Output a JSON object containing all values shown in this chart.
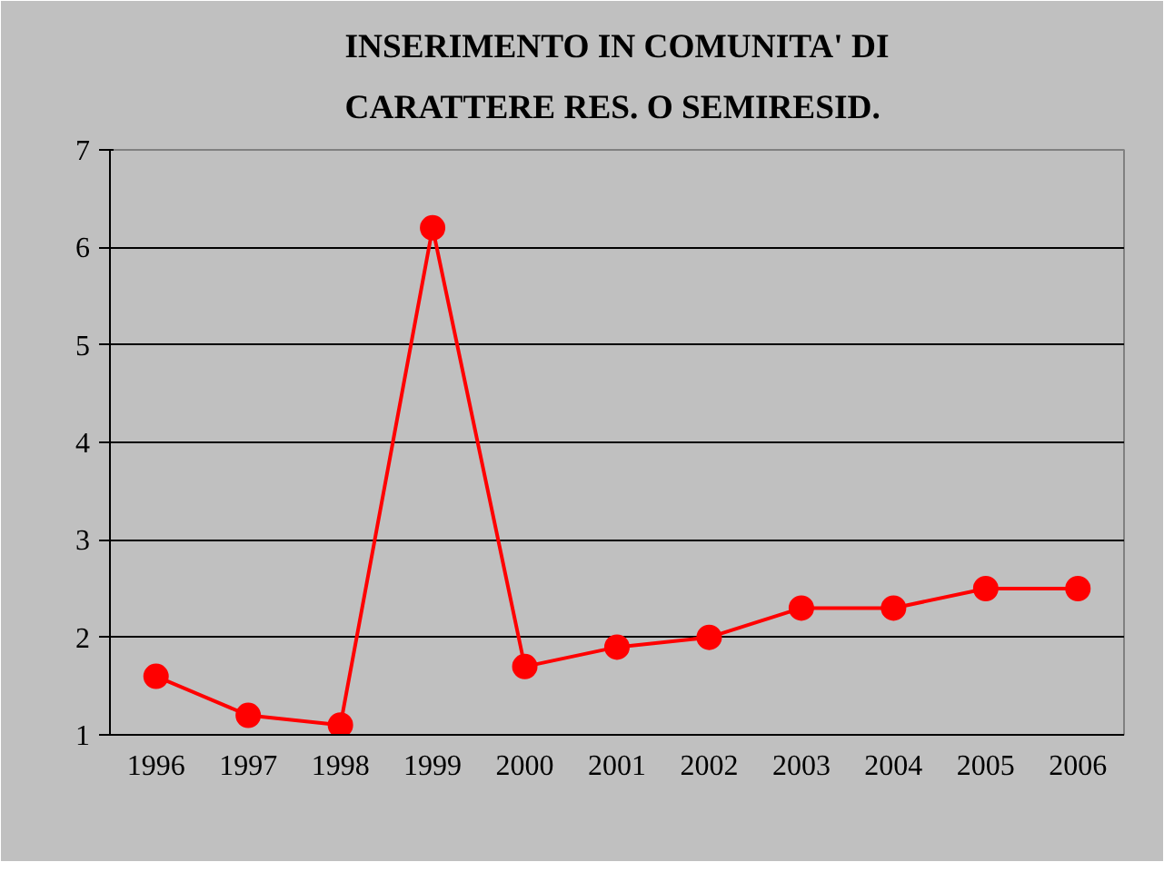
{
  "chart_data": {
    "type": "line",
    "title": "INSERIMENTO IN COMUNITA' DI\nCARATTERE RES. O SEMIRESID.",
    "categories": [
      "1996",
      "1997",
      "1998",
      "1999",
      "2000",
      "2001",
      "2002",
      "2003",
      "2004",
      "2005",
      "2006"
    ],
    "series": [
      {
        "color": "#ff0000",
        "values": [
          1.6,
          1.2,
          1.1,
          6.2,
          1.7,
          1.9,
          2.0,
          2.3,
          2.3,
          2.5,
          2.5
        ]
      }
    ],
    "ylim": [
      1,
      7
    ],
    "yticks": [
      1,
      2,
      3,
      4,
      5,
      6,
      7
    ],
    "grid": "y",
    "marker": "circle",
    "line_style": "solid"
  }
}
